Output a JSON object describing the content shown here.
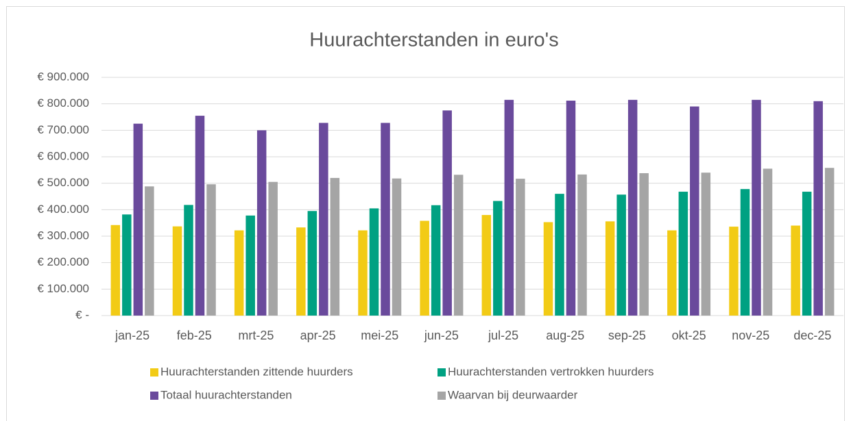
{
  "chart_data": {
    "type": "bar",
    "title": "Huurachterstanden in euro's",
    "categories": [
      "jan-25",
      "feb-25",
      "mrt-25",
      "apr-25",
      "mei-25",
      "jun-25",
      "jul-25",
      "aug-25",
      "sep-25",
      "okt-25",
      "nov-25",
      "dec-25"
    ],
    "series": [
      {
        "name": "Huurachterstanden zittende huurders",
        "color": "#f2cb16",
        "values": [
          342000,
          337000,
          322000,
          333000,
          322000,
          358000,
          380000,
          353000,
          356000,
          322000,
          336000,
          340000
        ]
      },
      {
        "name": "Huurachterstanden vertrokken huurders",
        "color": "#00a182",
        "values": [
          382000,
          418000,
          378000,
          395000,
          405000,
          417000,
          433000,
          460000,
          457000,
          468000,
          478000,
          468000
        ]
      },
      {
        "name": "Totaal huurachterstanden",
        "color": "#6a4a9c",
        "values": [
          725000,
          755000,
          700000,
          728000,
          728000,
          775000,
          815000,
          812000,
          815000,
          790000,
          815000,
          810000
        ]
      },
      {
        "name": "Waarvan bij deurwaarder",
        "color": "#a5a5a5",
        "values": [
          488000,
          496000,
          505000,
          520000,
          518000,
          532000,
          517000,
          533000,
          538000,
          540000,
          555000,
          558000
        ]
      }
    ],
    "ylim": [
      0,
      900000
    ],
    "yticks": [
      {
        "value": 0,
        "label": "€ -"
      },
      {
        "value": 100000,
        "label": "€ 100.000"
      },
      {
        "value": 200000,
        "label": "€ 200.000"
      },
      {
        "value": 300000,
        "label": "€ 300.000"
      },
      {
        "value": 400000,
        "label": "€ 400.000"
      },
      {
        "value": 500000,
        "label": "€ 500.000"
      },
      {
        "value": 600000,
        "label": "€ 600.000"
      },
      {
        "value": 700000,
        "label": "€ 700.000"
      },
      {
        "value": 800000,
        "label": "€ 800.000"
      },
      {
        "value": 900000,
        "label": "€ 900.000"
      }
    ],
    "grid": true
  }
}
